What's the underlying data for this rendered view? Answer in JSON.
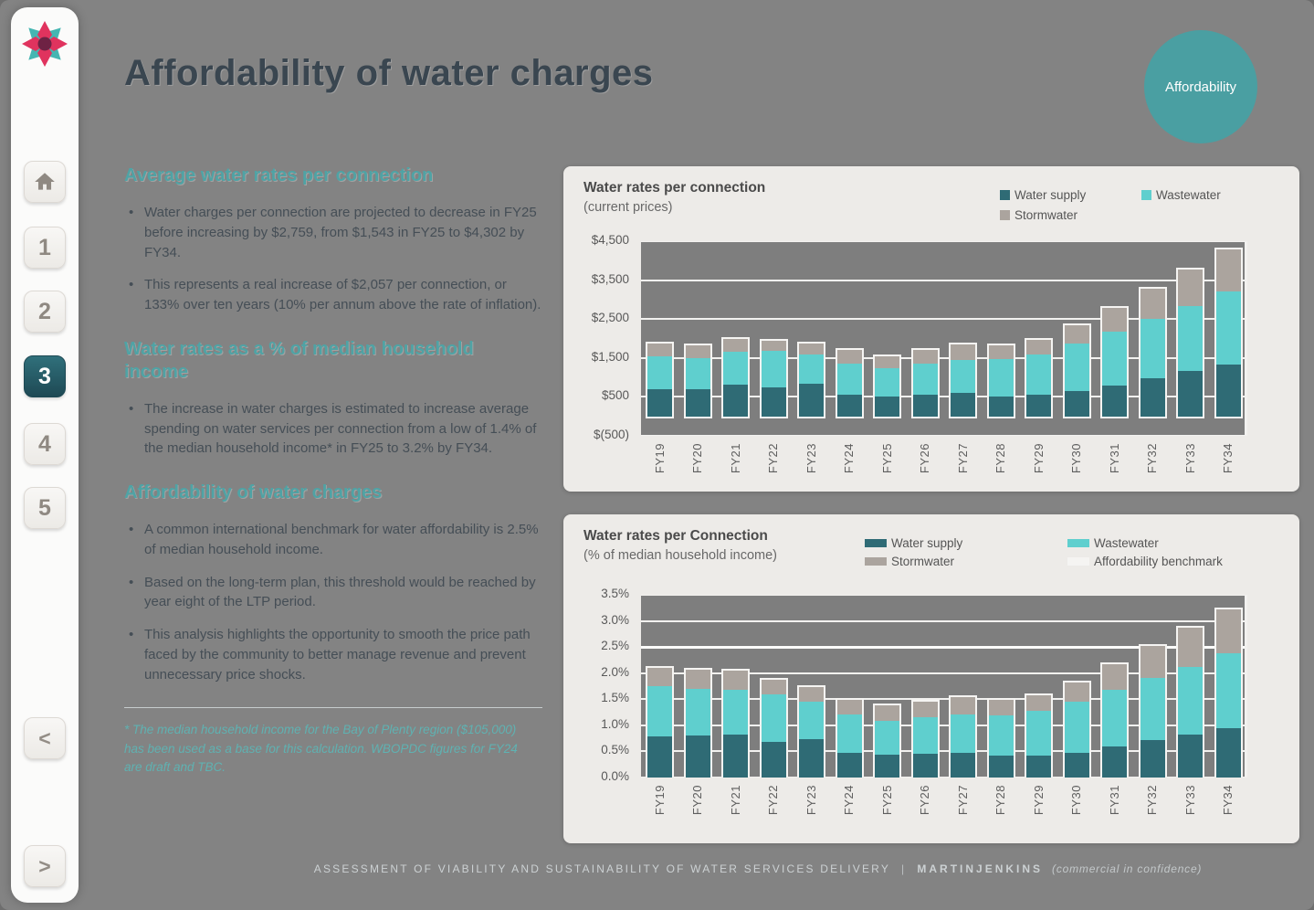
{
  "page": {
    "title": "Affordability of water charges",
    "badge": "Affordability",
    "footer": {
      "report": "ASSESSMENT OF VIABILITY AND SUSTAINABILITY OF WATER SERVICES DELIVERY",
      "divider": "|",
      "brand": "MARTINJENKINS",
      "note": "(commercial in confidence)"
    }
  },
  "sidebar": {
    "logo": "flower-star-logo",
    "home_icon": "home-icon",
    "pages": [
      "1",
      "2",
      "3",
      "4",
      "5"
    ],
    "active_page": "3",
    "prev": "<",
    "next": ">"
  },
  "content": {
    "sections": [
      {
        "heading": "Average water rates per connection",
        "bullets": [
          "Water charges per connection are projected to decrease in FY25 before increasing by $2,759, from $1,543 in FY25 to $4,302 by FY34.",
          "This represents a real increase of $2,057 per connection, or 133% over ten years (10% per annum above the rate of inflation)."
        ]
      },
      {
        "heading": "Water rates as a % of median household income",
        "bullets": [
          "The increase in water charges is estimated to increase average spending on water services per connection from a low of 1.4% of the median household income* in FY25 to 3.2% by FY34."
        ]
      },
      {
        "heading": "Affordability of water charges",
        "bullets": [
          "A common international benchmark for water affordability is 2.5% of median household income.",
          "Based on the long-term plan, this threshold would be reached by year eight of the LTP period.",
          "This analysis highlights the opportunity to smooth the price path faced by the community to better manage revenue and prevent unnecessary price shocks."
        ]
      }
    ],
    "footnote": "* The median household income for the Bay of Plenty region ($105,000) has been used as a base for this calculation. WBOPDC figures for FY24 are draft and TBC."
  },
  "colors": {
    "badge": "#4a9fa2",
    "water_supply": "#2f6b75",
    "wastewater": "#5fcfce",
    "stormwater": "#aba49e",
    "benchmark_line": "#f5f4f2",
    "heading_teal": "#4fa3a5",
    "active_nav": "#2a5f6b"
  },
  "chart_data": [
    {
      "type": "bar",
      "stacked": true,
      "title": "Water rates per connection",
      "subtitle": "(current prices)",
      "categories": [
        "FY19",
        "FY20",
        "FY21",
        "FY22",
        "FY23",
        "FY24",
        "FY25",
        "FY26",
        "FY27",
        "FY28",
        "FY29",
        "FY30",
        "FY31",
        "FY32",
        "FY33",
        "FY34"
      ],
      "series": [
        {
          "name": "Water supply",
          "color": "#2f6b75",
          "values": [
            700,
            700,
            820,
            750,
            830,
            560,
            520,
            550,
            610,
            520,
            550,
            660,
            800,
            990,
            1160,
            1340
          ]
        },
        {
          "name": "Wastewater",
          "color": "#5fcfce",
          "values": [
            850,
            800,
            830,
            930,
            770,
            790,
            710,
            800,
            830,
            960,
            1030,
            1200,
            1370,
            1510,
            1670,
            1870
          ]
        },
        {
          "name": "Stormwater",
          "color": "#aba49e",
          "values": [
            330,
            330,
            350,
            270,
            280,
            350,
            310,
            350,
            400,
            350,
            380,
            470,
            610,
            780,
            950,
            1090
          ]
        }
      ],
      "ylim": [
        -500,
        4500
      ],
      "ytick_step": 1000,
      "ytick_labels_top_to_bottom": [
        "$4,500",
        "$3,500",
        "$2,500",
        "$1,500",
        "$500",
        "$(500)"
      ],
      "grid": true,
      "legend_position": "top-right",
      "plot_background": "#7e7e7e"
    },
    {
      "type": "bar",
      "stacked": true,
      "title": "Water rates per Connection",
      "subtitle": "(% of median household income)",
      "categories": [
        "FY19",
        "FY20",
        "FY21",
        "FY22",
        "FY23",
        "FY24",
        "FY25",
        "FY26",
        "FY27",
        "FY28",
        "FY29",
        "FY30",
        "FY31",
        "FY32",
        "FY33",
        "FY34"
      ],
      "series": [
        {
          "name": "Water supply",
          "color": "#2f6b75",
          "values": [
            0.78,
            0.8,
            0.83,
            0.68,
            0.73,
            0.48,
            0.44,
            0.45,
            0.47,
            0.42,
            0.42,
            0.47,
            0.59,
            0.72,
            0.82,
            0.94
          ]
        },
        {
          "name": "Wastewater",
          "color": "#5fcfce",
          "values": [
            0.97,
            0.9,
            0.85,
            0.92,
            0.73,
            0.73,
            0.64,
            0.7,
            0.74,
            0.77,
            0.86,
            0.98,
            1.09,
            1.19,
            1.3,
            1.44
          ]
        },
        {
          "name": "Stormwater",
          "color": "#aba49e",
          "values": [
            0.35,
            0.37,
            0.37,
            0.27,
            0.28,
            0.27,
            0.3,
            0.3,
            0.33,
            0.3,
            0.29,
            0.37,
            0.49,
            0.61,
            0.75,
            0.84
          ]
        }
      ],
      "benchmark": {
        "label": "Affordability benchmark",
        "value": 2.5,
        "color": "#f5f4f2"
      },
      "ylim": [
        0,
        3.5
      ],
      "ytick_step": 0.5,
      "ytick_labels_top_to_bottom": [
        "3.5%",
        "3.0%",
        "2.5%",
        "2.0%",
        "1.5%",
        "1.0%",
        "0.5%",
        "0.0%"
      ],
      "grid": true,
      "legend_position": "top-right",
      "plot_background": "#7e7e7e"
    }
  ]
}
